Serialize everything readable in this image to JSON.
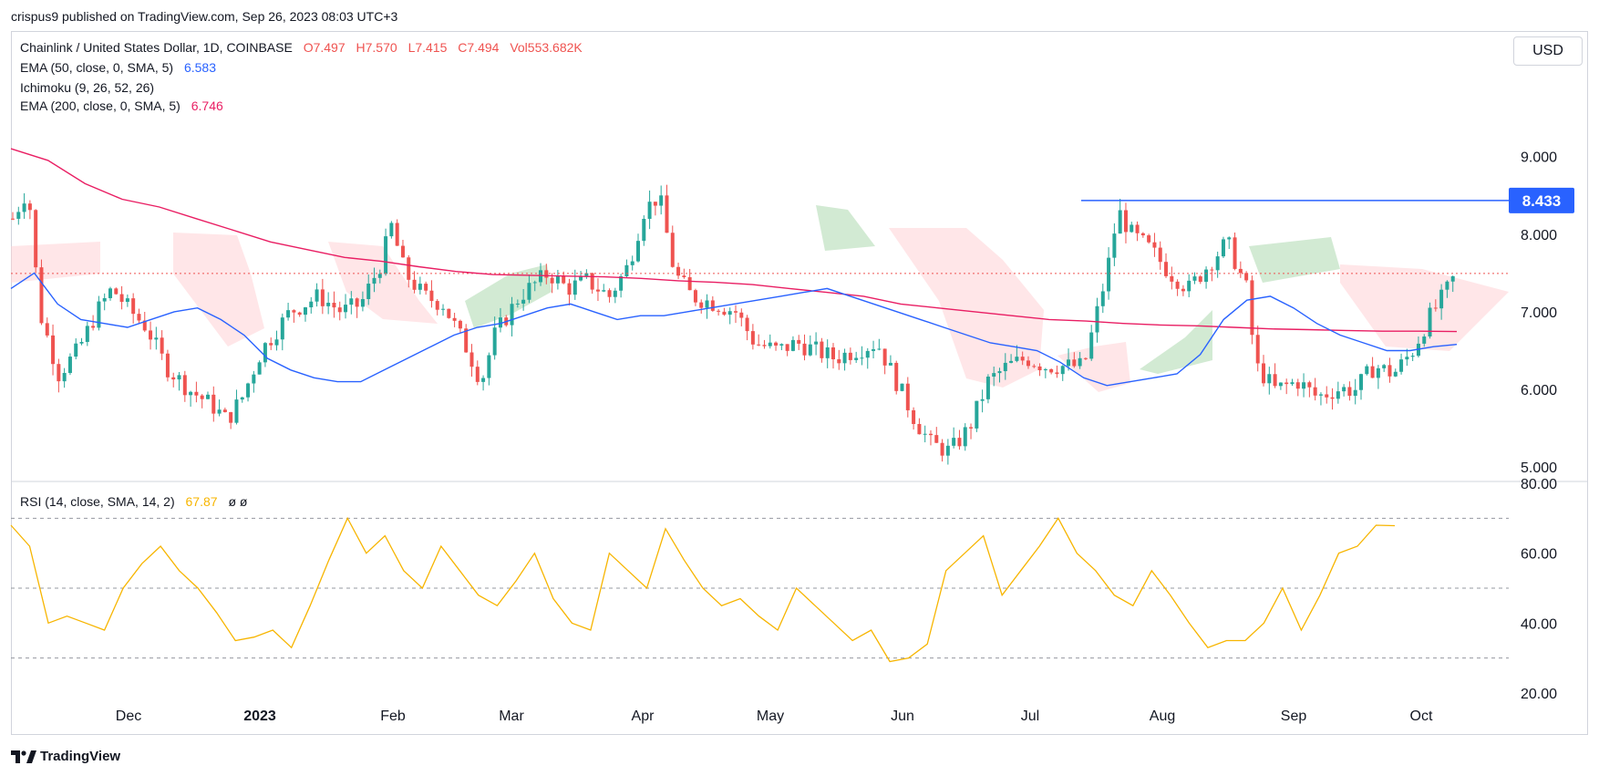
{
  "header": {
    "published_text": "crispus9 published on TradingView.com, Sep 26, 2023 08:03 UTC+3"
  },
  "legend": {
    "symbol": "Chainlink / United States Dollar, 1D, COINBASE",
    "open": "O7.497",
    "high": "H7.570",
    "low": "L7.415",
    "close": "C7.494",
    "volume": "Vol553.682K",
    "ema50_label": "EMA (50, close, 0, SMA, 5)",
    "ema50_value": "6.583",
    "ichimoku_label": "Ichimoku (9, 26, 52, 26)",
    "ema200_label": "EMA (200, close, 0, SMA, 5)",
    "ema200_value": "6.746",
    "rsi_label": "RSI (14, close, SMA, 14, 2)",
    "rsi_value": "67.87",
    "rsi_extra": "ø  ø"
  },
  "currency_button": "USD",
  "footer_logo": "TradingView",
  "colors": {
    "up": "#26a69a",
    "down": "#ef5350",
    "ema50": "#2962ff",
    "ema200": "#e91e63",
    "rsi": "#f7b500",
    "cloud_bull": "#a5d6a7",
    "cloud_bear": "#ffcdd2",
    "resistance": "#2962ff",
    "price_line": "#ef5350"
  },
  "chart_data": [
    {
      "type": "candlestick",
      "title": "Chainlink / United States Dollar, 1D, COINBASE",
      "x_ticks": [
        "Dec",
        "2023",
        "Feb",
        "Mar",
        "Apr",
        "May",
        "Jun",
        "Jul",
        "Aug",
        "Sep",
        "Oct"
      ],
      "y_ticks": [
        "9.000",
        "8.000",
        "7.000",
        "6.000",
        "5.000"
      ],
      "ylim": [
        4.85,
        9.9
      ],
      "resistance_level": 8.433,
      "resistance_label": "8.433",
      "last_price": 7.494,
      "series": [
        {
          "name": "EMA (50, close, 0, SMA, 5)",
          "values": [
            7.3,
            7.5,
            7.1,
            6.9,
            6.85,
            6.8,
            6.9,
            7.0,
            7.05,
            6.9,
            6.7,
            6.4,
            6.25,
            6.15,
            6.1,
            6.1,
            6.25,
            6.4,
            6.55,
            6.7,
            6.8,
            6.85,
            6.95,
            7.05,
            7.1,
            7.0,
            6.9,
            6.95,
            6.95,
            7.0,
            7.05,
            7.1,
            7.15,
            7.2,
            7.25,
            7.3,
            7.2,
            7.1,
            7.0,
            6.9,
            6.8,
            6.7,
            6.6,
            6.55,
            6.5,
            6.35,
            6.15,
            6.05,
            6.1,
            6.15,
            6.2,
            6.45,
            6.9,
            7.15,
            7.2,
            7.05,
            6.85,
            6.7,
            6.6,
            6.5,
            6.5,
            6.55,
            6.58
          ]
        },
        {
          "name": "EMA (200, close, 0, SMA, 5)",
          "values": [
            9.1,
            8.95,
            8.65,
            8.45,
            8.35,
            8.2,
            8.05,
            7.9,
            7.8,
            7.7,
            7.65,
            7.58,
            7.52,
            7.48,
            7.47,
            7.46,
            7.45,
            7.43,
            7.4,
            7.38,
            7.35,
            7.3,
            7.25,
            7.2,
            7.1,
            7.05,
            7.0,
            6.95,
            6.9,
            6.88,
            6.85,
            6.83,
            6.82,
            6.8,
            6.78,
            6.77,
            6.76,
            6.75,
            6.75,
            6.746
          ]
        },
        {
          "name": "RSI (14, close, SMA, 14, 2)",
          "values": [
            68,
            62,
            40,
            42,
            40,
            38,
            50,
            57,
            62,
            55,
            50,
            43,
            35,
            36,
            38,
            33,
            45,
            58,
            70,
            60,
            65,
            55,
            50,
            62,
            55,
            48,
            45,
            52,
            60,
            47,
            40,
            38,
            60,
            55,
            50,
            67,
            58,
            50,
            45,
            47,
            42,
            38,
            50,
            45,
            40,
            35,
            38,
            29,
            30,
            34,
            55,
            60,
            65,
            48,
            55,
            62,
            70,
            60,
            55,
            48,
            45,
            55,
            48,
            40,
            33,
            35,
            35,
            40,
            50,
            38,
            48,
            60,
            62,
            68,
            67.87
          ]
        }
      ],
      "rsi_ylim": [
        20,
        80
      ],
      "rsi_y_ticks": [
        "80.00",
        "60.00",
        "40.00",
        "20.00"
      ],
      "rsi_levels": [
        70,
        50,
        30
      ]
    }
  ]
}
